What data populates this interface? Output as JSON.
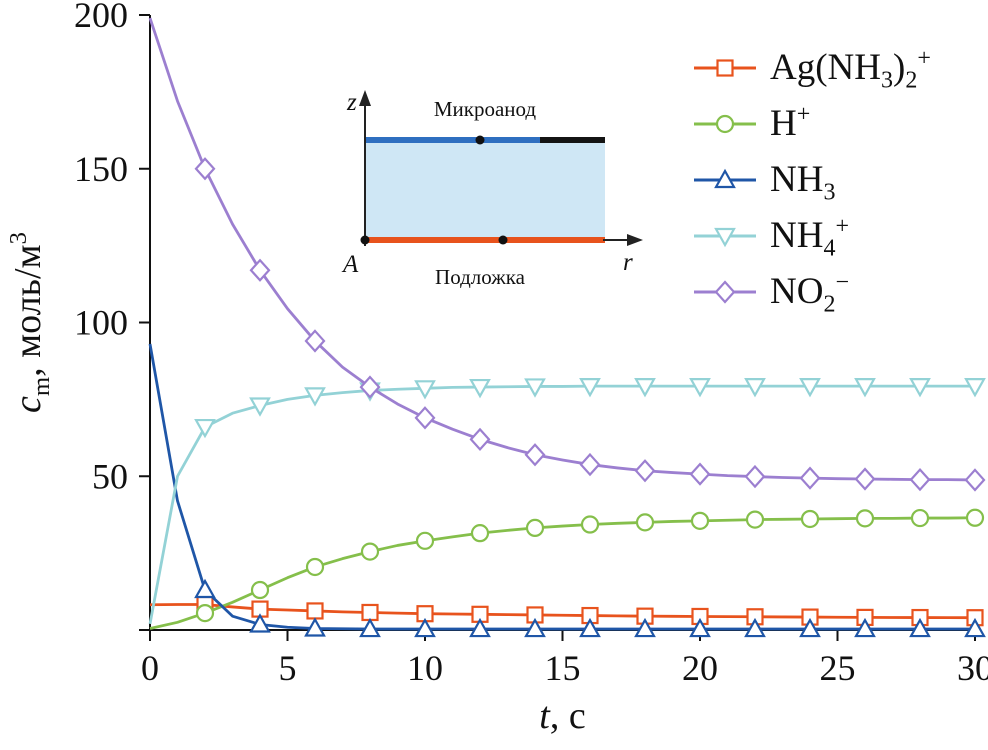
{
  "figure": {
    "background": "#ffffff",
    "text_color": "#111111"
  },
  "chart_data": {
    "type": "line",
    "title": "",
    "grid": false,
    "legend_position": "top-right",
    "xlim": [
      0,
      30
    ],
    "ylim": [
      0,
      200
    ],
    "xticks": [
      0,
      5,
      10,
      15,
      20,
      25,
      30
    ],
    "yticks": [
      0,
      50,
      100,
      150,
      200
    ],
    "ytick_labels": [
      "",
      "50",
      "100",
      "150",
      "200"
    ],
    "xlabel_parts": [
      {
        "text": "t",
        "style": "italic"
      },
      {
        "text": ", с"
      }
    ],
    "ylabel_parts": [
      {
        "text": "c",
        "style": "italic"
      },
      {
        "text": "m",
        "script": "sub"
      },
      {
        "text": ", моль/м"
      },
      {
        "text": "3",
        "script": "sup"
      }
    ],
    "x": [
      0,
      1,
      2,
      3,
      4,
      5,
      6,
      7,
      8,
      9,
      10,
      11,
      12,
      13,
      14,
      15,
      16,
      17,
      18,
      19,
      20,
      21,
      22,
      23,
      24,
      25,
      26,
      27,
      28,
      29,
      30
    ],
    "series": [
      {
        "id": "ag-nh3-2",
        "name": "Ag(NH3)2+",
        "color": "#e8531d",
        "marker": "square",
        "marker_every": 2,
        "label_parts": [
          {
            "text": "Ag(NH"
          },
          {
            "text": "3",
            "script": "sub"
          },
          {
            "text": ")"
          },
          {
            "text": "2",
            "script": "sub"
          },
          {
            "text": "+",
            "script": "sup"
          }
        ],
        "values": [
          8.2,
          8.3,
          8.3,
          7.5,
          6.8,
          6.5,
          6.2,
          5.9,
          5.7,
          5.5,
          5.3,
          5.2,
          5.1,
          5.0,
          4.9,
          4.8,
          4.7,
          4.6,
          4.5,
          4.45,
          4.4,
          4.35,
          4.3,
          4.25,
          4.2,
          4.15,
          4.1,
          4.07,
          4.05,
          4.02,
          4.0
        ]
      },
      {
        "id": "h-plus",
        "name": "H+",
        "color": "#85bf4b",
        "marker": "circle",
        "marker_every": 2,
        "label_parts": [
          {
            "text": "H"
          },
          {
            "text": "+",
            "script": "sup"
          }
        ],
        "values": [
          0.5,
          2.5,
          5.5,
          9,
          13,
          17,
          20.5,
          23.2,
          25.5,
          27.5,
          29,
          30.3,
          31.5,
          32.4,
          33.2,
          33.8,
          34.3,
          34.7,
          35.0,
          35.3,
          35.5,
          35.7,
          35.9,
          36.0,
          36.1,
          36.2,
          36.3,
          36.3,
          36.4,
          36.4,
          36.5
        ]
      },
      {
        "id": "nh3",
        "name": "NH3",
        "color": "#1f56a7",
        "marker": "triangle-up",
        "marker_every": 2,
        "label_parts": [
          {
            "text": "NH"
          },
          {
            "text": "3",
            "script": "sub"
          }
        ],
        "values": [
          93,
          42,
          13,
          4.5,
          1.8,
          0.9,
          0.5,
          0.4,
          0.3,
          0.3,
          0.3,
          0.3,
          0.3,
          0.3,
          0.3,
          0.3,
          0.3,
          0.3,
          0.3,
          0.3,
          0.3,
          0.3,
          0.3,
          0.3,
          0.3,
          0.3,
          0.3,
          0.3,
          0.3,
          0.3,
          0.3
        ]
      },
      {
        "id": "nh4-plus",
        "name": "NH4+",
        "color": "#93d2d6",
        "marker": "triangle-down",
        "marker_every": 2,
        "label_parts": [
          {
            "text": "NH"
          },
          {
            "text": "4",
            "script": "sub"
          },
          {
            "text": "+",
            "script": "sup"
          }
        ],
        "values": [
          2,
          50,
          66,
          70.5,
          73,
          75,
          76.3,
          77.2,
          77.9,
          78.3,
          78.6,
          78.9,
          79,
          79.1,
          79.2,
          79.2,
          79.3,
          79.3,
          79.3,
          79.3,
          79.3,
          79.3,
          79.3,
          79.3,
          79.3,
          79.3,
          79.3,
          79.3,
          79.3,
          79.3,
          79.3
        ]
      },
      {
        "id": "no2-minus",
        "name": "NO2-",
        "color": "#9c7fd0",
        "marker": "diamond",
        "marker_every": 2,
        "label_parts": [
          {
            "text": "NO"
          },
          {
            "text": "2",
            "script": "sub"
          },
          {
            "text": "−",
            "script": "sup"
          }
        ],
        "values": [
          199,
          172,
          150,
          132,
          117,
          104.5,
          94,
          85.5,
          79,
          73.5,
          69,
          65.3,
          62,
          59.3,
          57,
          55.3,
          53.8,
          52.7,
          51.8,
          51.2,
          50.7,
          50.2,
          49.9,
          49.6,
          49.4,
          49.2,
          49.1,
          49,
          48.9,
          48.9,
          48.8
        ]
      }
    ]
  },
  "inset": {
    "labels": {
      "z_axis": "z",
      "r_axis": "r",
      "point_a": "A",
      "anode": "Микроанод",
      "substrate": "Подложка"
    },
    "fill_color": "#cfe7f5",
    "anode_color": "#2f6fc0",
    "contact_color": "#141414",
    "substrate_color": "#e8531d",
    "axis_color": "#222222"
  }
}
